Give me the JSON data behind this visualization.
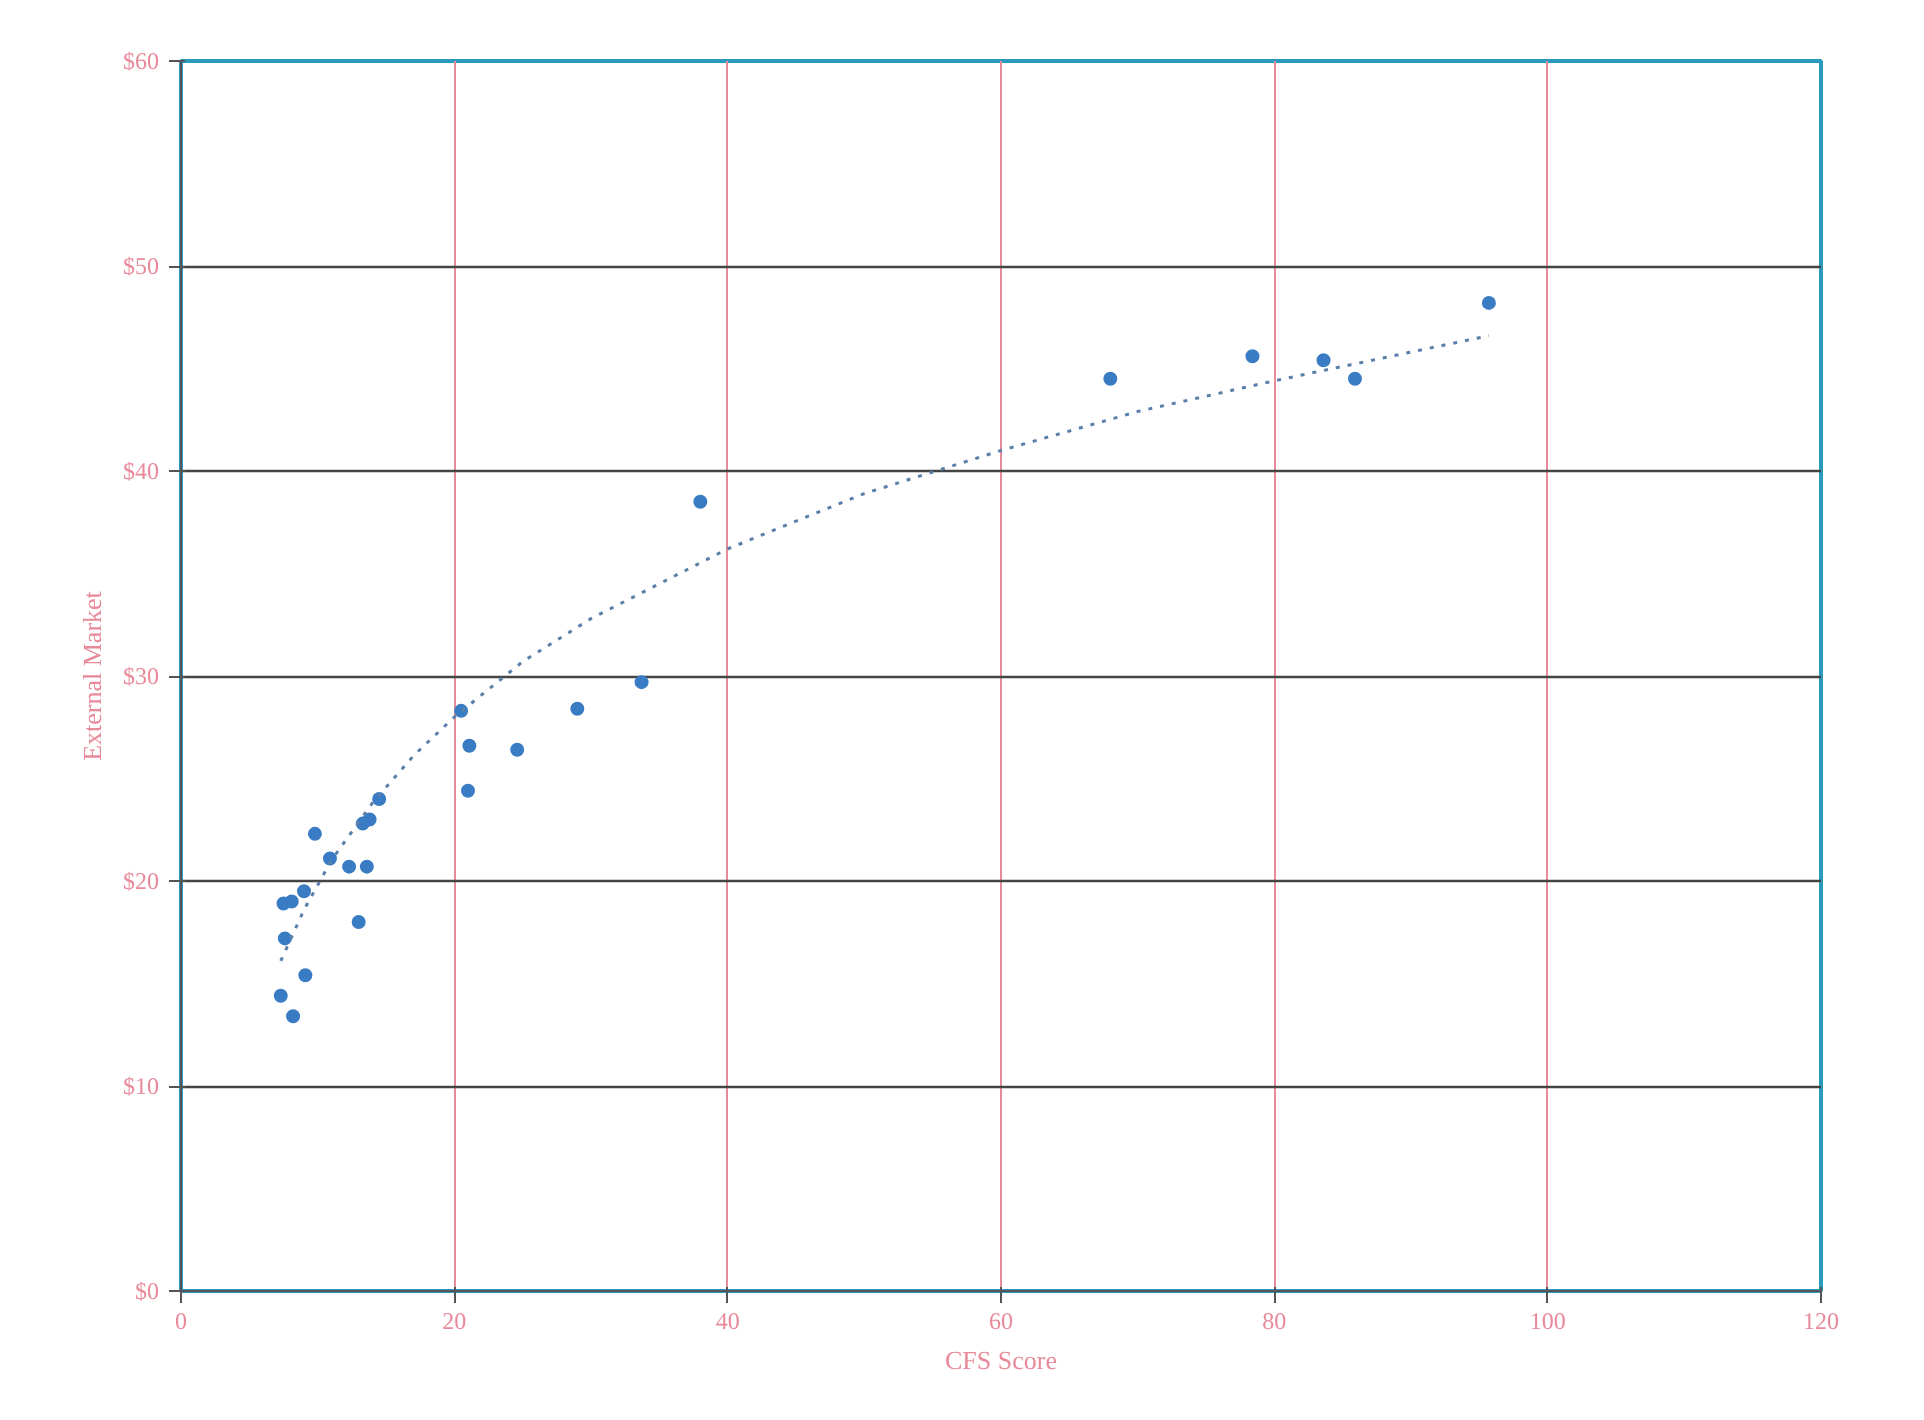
{
  "chart_data": {
    "type": "scatter",
    "xlabel": "CFS Score",
    "ylabel": "External Market",
    "xlim": [
      0,
      120
    ],
    "xticks": [
      0,
      20,
      40,
      60,
      80,
      100,
      120
    ],
    "ylim": [
      0,
      60
    ],
    "yticks": [
      {
        "value": 0,
        "label": "$0"
      },
      {
        "value": 10,
        "label": "$10"
      },
      {
        "value": 20,
        "label": "$20"
      },
      {
        "value": 30,
        "label": "$30"
      },
      {
        "value": 40,
        "label": "$40"
      },
      {
        "value": 50,
        "label": "$50"
      },
      {
        "value": 60,
        "label": "$60"
      }
    ],
    "grid": true,
    "marker": "circle",
    "series": [
      {
        "color": "#3a7cc4",
        "x": [
          7.3,
          8.2,
          7.6,
          7.5,
          8.1,
          9.0,
          9.1,
          9.8,
          10.9,
          12.3,
          13.0,
          13.6,
          13.3,
          13.8,
          14.5,
          20.5,
          21.1,
          21.0,
          24.6,
          29.0,
          33.7,
          38.0,
          68.0,
          78.4,
          83.6,
          85.9,
          95.7
        ],
        "values": [
          14.4,
          13.4,
          17.2,
          18.9,
          19.0,
          19.5,
          15.4,
          22.3,
          21.1,
          20.7,
          18.0,
          20.7,
          22.8,
          23.0,
          24.0,
          28.3,
          26.6,
          24.4,
          26.4,
          28.4,
          29.7,
          38.5,
          44.5,
          45.6,
          45.4,
          44.5,
          48.2
        ]
      },
      {
        "type": "line",
        "line_style": "dotted",
        "marker": "none",
        "color": "#5a7fa8",
        "x": [
          7.3,
          9,
          11,
          14,
          17,
          20,
          25,
          30,
          40,
          50,
          60,
          70,
          80,
          95.7
        ],
        "values": [
          16.1,
          18.6,
          21.0,
          23.8,
          26.1,
          28.0,
          30.7,
          32.8,
          36.2,
          38.9,
          41.0,
          42.9,
          44.4,
          46.6
        ]
      }
    ]
  }
}
